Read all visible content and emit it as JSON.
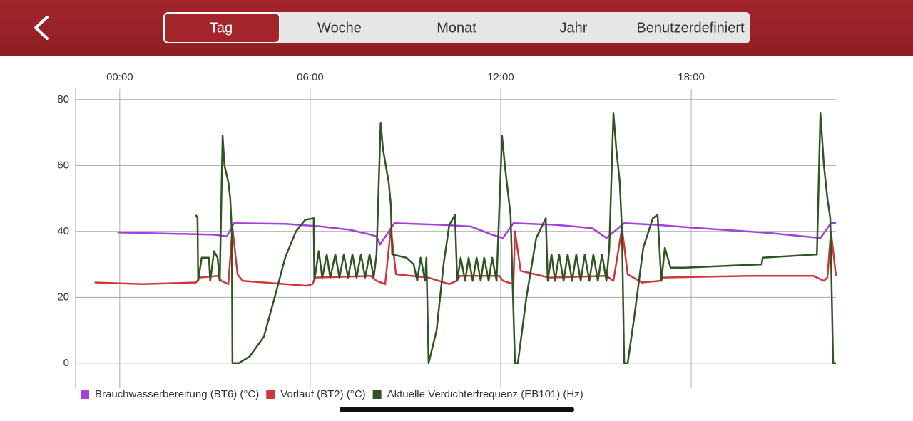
{
  "header": {
    "tabs": [
      "Tag",
      "Woche",
      "Monat",
      "Jahr",
      "Benutzerdefiniert"
    ],
    "selected_tab": 0
  },
  "chart_data": {
    "type": "line",
    "xlim": [
      -1.39,
      22.56
    ],
    "xticks": [
      {
        "value": 0,
        "label": "00:00"
      },
      {
        "value": 6,
        "label": "06:00"
      },
      {
        "value": 12,
        "label": "12:00"
      },
      {
        "value": 18,
        "label": "18:00"
      }
    ],
    "ylim": [
      -7.6,
      83.2
    ],
    "yticks": [
      0,
      20,
      40,
      60,
      80
    ],
    "grid": true,
    "legend": "bottom",
    "series": [
      {
        "name": "Brauchwasserbereitung (BT6) (°C)",
        "color": "#a53fe0",
        "x": [
          -0.07,
          2.97,
          3.37,
          3.6,
          5.21,
          6.34,
          7.24,
          7.91,
          8.09,
          8.2,
          8.65,
          10.16,
          11.06,
          11.73,
          12.07,
          12.4,
          13.75,
          14.88,
          15.33,
          15.89,
          16.9,
          18.25,
          20.49,
          22.07,
          22.4,
          22.56
        ],
        "values": [
          39.7,
          39,
          38.5,
          42.5,
          42.3,
          41.5,
          40.5,
          39,
          38.5,
          36,
          42.5,
          42,
          41.5,
          39,
          38,
          42.5,
          42,
          41,
          38,
          42.5,
          42,
          41,
          39.5,
          38,
          42.5,
          42.5
        ]
      },
      {
        "name": "Vorlauf (BT2) (°C)",
        "color": "#d0363d",
        "x": [
          -0.79,
          0.72,
          2.4,
          2.52,
          3.08,
          3.2,
          3.42,
          3.55,
          3.71,
          3.87,
          5.21,
          5.89,
          6.07,
          6.16,
          7.91,
          8.09,
          8.36,
          8.54,
          8.7,
          9.71,
          10.38,
          10.61,
          10.72,
          11.96,
          12.07,
          12.4,
          12.45,
          12.63,
          13.53,
          15.33,
          15.55,
          15.82,
          16.0,
          16.45,
          17.01,
          17.12,
          19.82,
          21.84,
          22.18,
          22.29,
          22.4,
          22.56
        ],
        "values": [
          24.5,
          24,
          24.5,
          26,
          26.5,
          25,
          24,
          41,
          27,
          25,
          24,
          23.5,
          24,
          26,
          26.5,
          25,
          24,
          41,
          27,
          26,
          24,
          25,
          26.5,
          26.5,
          25,
          24,
          40,
          28,
          26,
          26.5,
          25,
          41,
          27,
          24.5,
          25,
          26,
          26.5,
          26.5,
          25,
          26,
          40,
          26.5
        ]
      },
      {
        "name": "Aktuelle Verdichterfrequenz (EB101) (Hz)",
        "color": "#2f5522",
        "x": [
          2.4,
          2.45,
          2.47,
          2.58,
          2.81,
          2.85,
          2.97,
          3.08,
          3.15,
          3.24,
          3.3,
          3.42,
          3.48,
          3.53,
          3.55,
          3.75,
          4.09,
          4.54,
          4.88,
          5.21,
          5.55,
          5.84,
          6.11,
          6.13,
          6.27,
          6.38,
          6.52,
          6.63,
          6.79,
          6.92,
          7.06,
          7.19,
          7.33,
          7.46,
          7.6,
          7.73,
          7.87,
          8.0,
          8.09,
          8.22,
          8.29,
          8.38,
          8.47,
          8.54,
          8.58,
          9.03,
          9.26,
          9.37,
          9.48,
          9.62,
          9.66,
          9.73,
          9.98,
          10.2,
          10.38,
          10.56,
          10.63,
          10.74,
          10.88,
          10.99,
          11.12,
          11.24,
          11.37,
          11.48,
          11.62,
          11.73,
          11.87,
          12.04,
          12.13,
          12.25,
          12.31,
          12.45,
          12.54,
          12.81,
          13.12,
          13.42,
          13.48,
          13.6,
          13.71,
          13.84,
          13.98,
          14.11,
          14.25,
          14.38,
          14.52,
          14.65,
          14.79,
          14.92,
          15.06,
          15.19,
          15.33,
          15.42,
          15.55,
          15.64,
          15.75,
          15.82,
          15.89,
          16.0,
          16.22,
          16.49,
          16.79,
          16.94,
          17.06,
          17.17,
          17.35,
          17.8,
          20.22,
          20.25,
          21.96,
          22.07,
          22.18,
          22.29,
          22.38,
          22.47,
          22.56
        ],
        "values": [
          45,
          44,
          25,
          32,
          32,
          25,
          34,
          32,
          25,
          69,
          60,
          55,
          50,
          40,
          0,
          0,
          2,
          8,
          20,
          32,
          40,
          43.5,
          44,
          25,
          34,
          26,
          33,
          26,
          33,
          26,
          33,
          26,
          33,
          26,
          33,
          26,
          33,
          26,
          33,
          73,
          65,
          60,
          55,
          48,
          33,
          32,
          30,
          25,
          32,
          25,
          32,
          0,
          10,
          30,
          42,
          45,
          25,
          32,
          25,
          32,
          25,
          32,
          25,
          32,
          25,
          32,
          25,
          69,
          60,
          50,
          45,
          0,
          0,
          20,
          38,
          44,
          25,
          33,
          25,
          33,
          25,
          33,
          25,
          33,
          25,
          33,
          25,
          33,
          25,
          33,
          25,
          35,
          76,
          65,
          55,
          40,
          0,
          0,
          15,
          35,
          44,
          45,
          25,
          35,
          29,
          29,
          30,
          32,
          33,
          76,
          60,
          50,
          44,
          0,
          0
        ]
      }
    ]
  }
}
